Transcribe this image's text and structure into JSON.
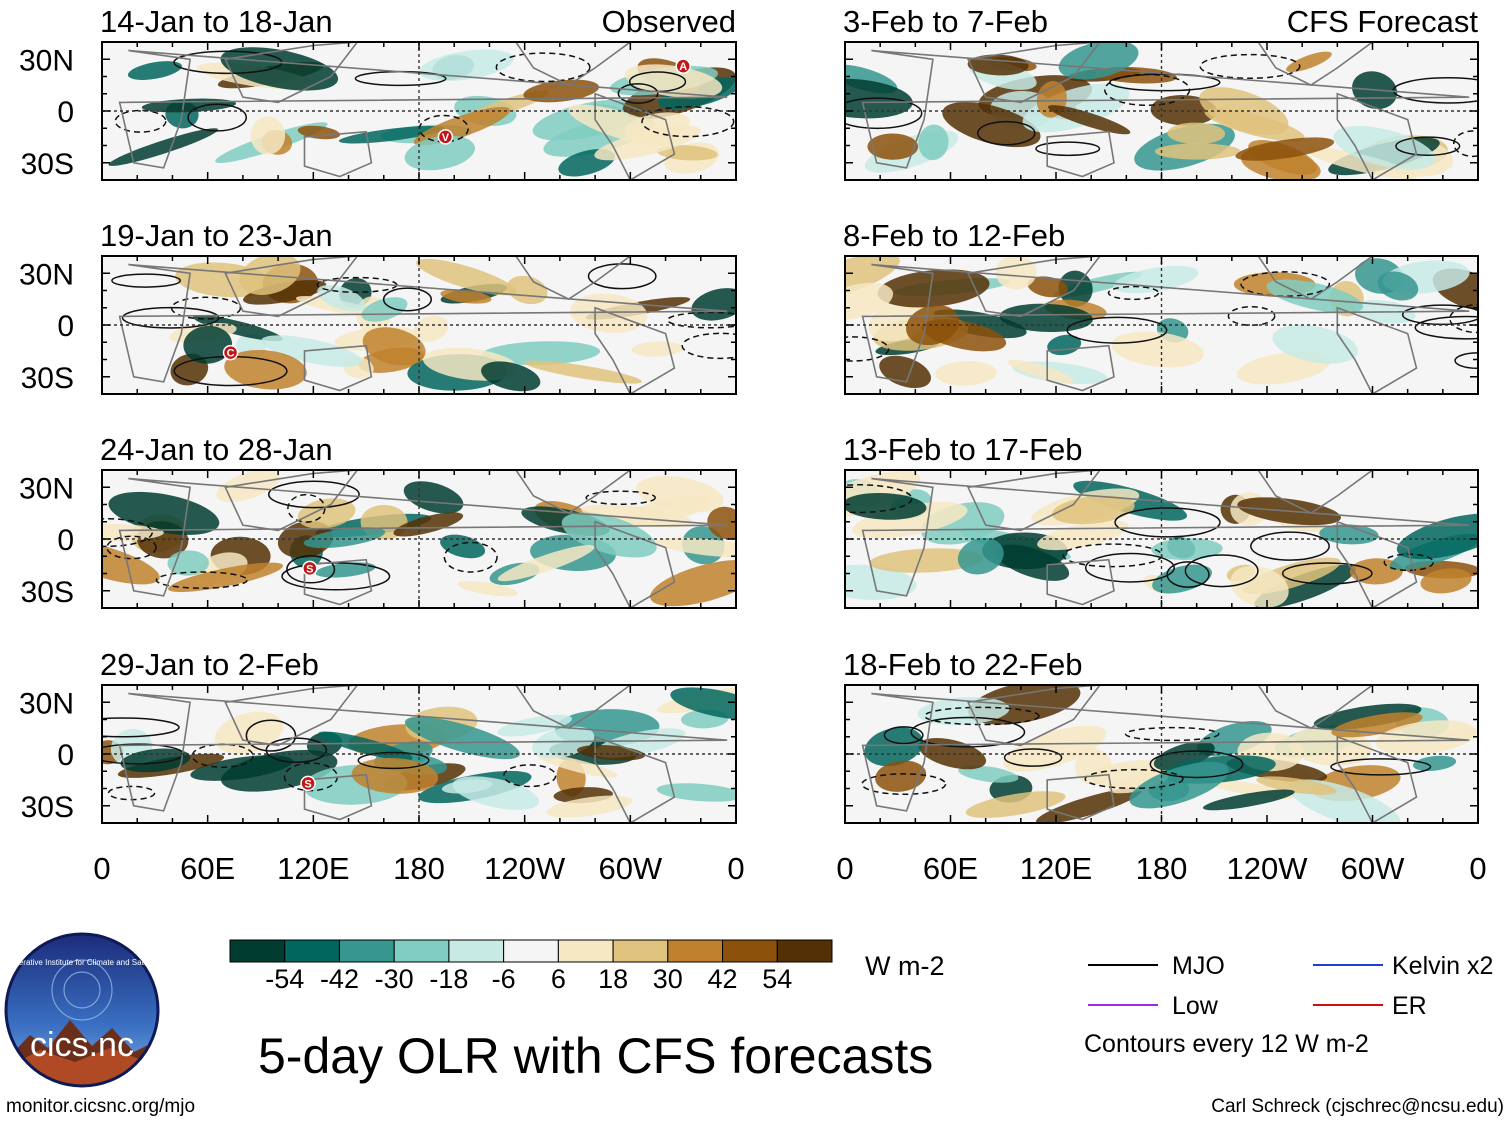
{
  "title": "5-day OLR with CFS forecasts",
  "columns": [
    {
      "label": "Observed",
      "x_axis_labels": [
        "0",
        "60E",
        "120E",
        "180",
        "120W",
        "60W",
        "0"
      ],
      "panels": [
        {
          "title": "14-Jan to 18-Jan",
          "markers": [
            {
              "letter": "V",
              "lon": 195,
              "lat": -15
            },
            {
              "letter": "A",
              "lon": 330,
              "lat": 26
            }
          ]
        },
        {
          "title": "19-Jan to 23-Jan",
          "markers": [
            {
              "letter": "C",
              "lon": 73,
              "lat": -16
            }
          ]
        },
        {
          "title": "24-Jan to 28-Jan",
          "markers": [
            {
              "letter": "S",
              "lon": 118,
              "lat": -17
            }
          ]
        },
        {
          "title": "29-Jan to 2-Feb",
          "markers": [
            {
              "letter": "S",
              "lon": 117,
              "lat": -17
            }
          ]
        }
      ]
    },
    {
      "label": "CFS Forecast",
      "x_axis_labels": [
        "0",
        "60E",
        "120E",
        "180",
        "120W",
        "60W",
        "0"
      ],
      "panels": [
        {
          "title": "3-Feb to 7-Feb",
          "markers": []
        },
        {
          "title": "8-Feb to 12-Feb",
          "markers": []
        },
        {
          "title": "13-Feb to 17-Feb",
          "markers": []
        },
        {
          "title": "18-Feb to 22-Feb",
          "markers": []
        }
      ]
    }
  ],
  "y_axis_labels": [
    "30N",
    "0",
    "30S"
  ],
  "colorbar": {
    "unit": "W m-2",
    "ticks": [
      "-54",
      "-42",
      "-30",
      "-18",
      "-6",
      "6",
      "18",
      "30",
      "42",
      "54"
    ],
    "colors": [
      "#003c30",
      "#01665e",
      "#35978f",
      "#80cdc1",
      "#c7eae5",
      "#f5f5f5",
      "#f6e8c3",
      "#dfc27d",
      "#bf812d",
      "#8c510a",
      "#543005"
    ]
  },
  "legend": {
    "items": [
      {
        "label": "MJO",
        "color": "#000000"
      },
      {
        "label": "Kelvin x2",
        "color": "#1f3fd0"
      },
      {
        "label": "Low",
        "color": "#9b30d9"
      },
      {
        "label": "ER",
        "color": "#d01010"
      }
    ],
    "note": "Contours every 12 W m-2"
  },
  "logo": {
    "text": "cics.nc",
    "ring_text": "Cooperative Institute for Climate and Satellites"
  },
  "footer": {
    "left": "monitor.cicsnc.org/mjo",
    "right": "Carl Schreck (cjschrec@ncsu.edu)"
  }
}
